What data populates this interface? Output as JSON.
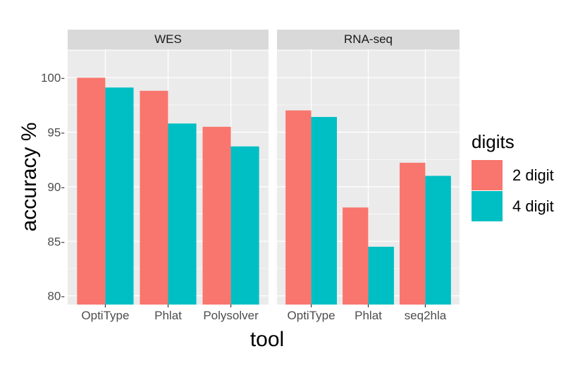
{
  "chart_data": {
    "type": "bar",
    "xlabel": "tool",
    "ylabel": "accuracy %",
    "ylim": [
      79.2,
      102.6
    ],
    "yticks": [
      80,
      85,
      90,
      95,
      100
    ],
    "yticks_labels": [
      "80-",
      "85-",
      "90-",
      "95-",
      "100-"
    ],
    "grid": true,
    "legend": {
      "title": "digits",
      "placement": "right",
      "entries": [
        "2 digit",
        "4 digit"
      ]
    },
    "colors": {
      "2 digit": "#F8766D",
      "4 digit": "#00BFC4"
    },
    "panels": [
      {
        "strip": "WES",
        "categories": [
          "OptiType",
          "Phlat",
          "Polysolver"
        ],
        "series": [
          {
            "name": "2 digit",
            "values": [
              100.0,
              98.8,
              95.5
            ]
          },
          {
            "name": "4 digit",
            "values": [
              99.1,
              95.8,
              93.7
            ]
          }
        ]
      },
      {
        "strip": "RNA-seq",
        "categories": [
          "OptiType",
          "Phlat",
          "seq2hla"
        ],
        "series": [
          {
            "name": "2 digit",
            "values": [
              97.0,
              88.1,
              92.2
            ]
          },
          {
            "name": "4 digit",
            "values": [
              96.4,
              84.5,
              91.0
            ]
          }
        ]
      }
    ]
  }
}
